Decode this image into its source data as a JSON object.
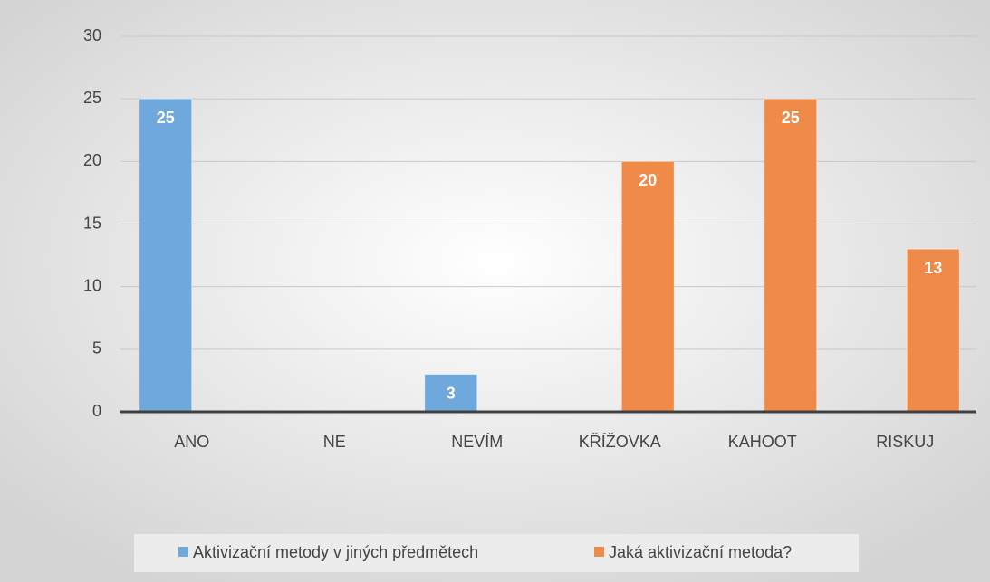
{
  "chart_data": {
    "type": "bar",
    "categories": [
      "ANO",
      "NE",
      "NEVÍM",
      "KŘÍŽOVKA",
      "KAHOOT",
      "RISKUJ"
    ],
    "series": [
      {
        "name": "Aktivizační metody v jiných předmětech",
        "color": "#6fa8dc",
        "values": [
          25,
          null,
          3,
          null,
          null,
          null
        ]
      },
      {
        "name": "Jaká aktivizační metoda?",
        "color": "#ef8a48",
        "values": [
          null,
          null,
          null,
          20,
          25,
          13
        ]
      }
    ],
    "ylim": [
      0,
      30
    ],
    "yticks": [
      0,
      5,
      10,
      15,
      20,
      25,
      30
    ],
    "grid": true,
    "legend": "bottom"
  }
}
